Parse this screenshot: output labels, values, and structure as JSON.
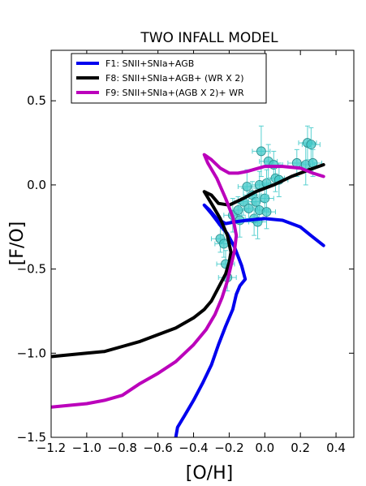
{
  "chart_data": {
    "type": "line",
    "title": "TWO INFALL MODEL",
    "xlabel": "[O/H]",
    "ylabel": "[F/O]",
    "xlim": [
      -1.2,
      0.5
    ],
    "ylim": [
      -1.5,
      0.8
    ],
    "xticks": [
      -1.2,
      -1.0,
      -0.8,
      -0.6,
      -0.4,
      -0.2,
      0.0,
      0.2,
      0.4
    ],
    "xtick_labels": [
      "−1.2",
      "−1.0",
      "−0.8",
      "−0.6",
      "−0.4",
      "−0.2",
      "0.0",
      "0.2",
      "0.4"
    ],
    "yticks": [
      -1.5,
      -1.0,
      -0.5,
      0.0,
      0.5
    ],
    "ytick_labels": [
      "−1.5",
      "−1.0",
      "−0.5",
      "0.0",
      "0.5"
    ],
    "grid": false,
    "legend_position": "top-left",
    "series": [
      {
        "name": "F1: SNII+SNIa+AGB",
        "color": "#0000ee",
        "points": [
          [
            -0.5,
            -1.5
          ],
          [
            -0.49,
            -1.44
          ],
          [
            -0.45,
            -1.37
          ],
          [
            -0.4,
            -1.28
          ],
          [
            -0.35,
            -1.18
          ],
          [
            -0.3,
            -1.07
          ],
          [
            -0.26,
            -0.95
          ],
          [
            -0.22,
            -0.84
          ],
          [
            -0.18,
            -0.74
          ],
          [
            -0.16,
            -0.65
          ],
          [
            -0.14,
            -0.6
          ],
          [
            -0.11,
            -0.56
          ],
          [
            -0.13,
            -0.48
          ],
          [
            -0.17,
            -0.37
          ],
          [
            -0.21,
            -0.29
          ],
          [
            -0.25,
            -0.24
          ],
          [
            -0.3,
            -0.17
          ],
          [
            -0.34,
            -0.12
          ],
          [
            -0.31,
            -0.15
          ],
          [
            -0.27,
            -0.2
          ],
          [
            -0.22,
            -0.23
          ],
          [
            -0.17,
            -0.22
          ],
          [
            -0.1,
            -0.21
          ],
          [
            0.0,
            -0.2
          ],
          [
            0.1,
            -0.21
          ],
          [
            0.2,
            -0.25
          ],
          [
            0.27,
            -0.31
          ],
          [
            0.33,
            -0.36
          ]
        ]
      },
      {
        "name": "F8: SNII+SNIa+AGB+ (WR X 2)",
        "color": "#000000",
        "points": [
          [
            -1.2,
            -1.02
          ],
          [
            -1.1,
            -1.01
          ],
          [
            -1.0,
            -1.0
          ],
          [
            -0.9,
            -0.99
          ],
          [
            -0.8,
            -0.96
          ],
          [
            -0.7,
            -0.93
          ],
          [
            -0.6,
            -0.89
          ],
          [
            -0.5,
            -0.85
          ],
          [
            -0.4,
            -0.79
          ],
          [
            -0.34,
            -0.74
          ],
          [
            -0.3,
            -0.69
          ],
          [
            -0.26,
            -0.61
          ],
          [
            -0.22,
            -0.53
          ],
          [
            -0.2,
            -0.46
          ],
          [
            -0.19,
            -0.4
          ],
          [
            -0.21,
            -0.3
          ],
          [
            -0.25,
            -0.2
          ],
          [
            -0.3,
            -0.11
          ],
          [
            -0.34,
            -0.04
          ],
          [
            -0.3,
            -0.06
          ],
          [
            -0.26,
            -0.11
          ],
          [
            -0.2,
            -0.12
          ],
          [
            -0.12,
            -0.08
          ],
          [
            -0.05,
            -0.04
          ],
          [
            0.05,
            0.0
          ],
          [
            0.15,
            0.05
          ],
          [
            0.25,
            0.09
          ],
          [
            0.33,
            0.12
          ]
        ]
      },
      {
        "name": "F9: SNII+SNIa+(AGB X 2)+ WR",
        "color": "#bb00bb",
        "points": [
          [
            -1.2,
            -1.32
          ],
          [
            -1.1,
            -1.31
          ],
          [
            -1.0,
            -1.3
          ],
          [
            -0.9,
            -1.28
          ],
          [
            -0.8,
            -1.25
          ],
          [
            -0.7,
            -1.18
          ],
          [
            -0.6,
            -1.12
          ],
          [
            -0.5,
            -1.05
          ],
          [
            -0.4,
            -0.95
          ],
          [
            -0.33,
            -0.86
          ],
          [
            -0.28,
            -0.77
          ],
          [
            -0.24,
            -0.67
          ],
          [
            -0.21,
            -0.57
          ],
          [
            -0.19,
            -0.48
          ],
          [
            -0.17,
            -0.39
          ],
          [
            -0.16,
            -0.3
          ],
          [
            -0.18,
            -0.19
          ],
          [
            -0.22,
            -0.08
          ],
          [
            -0.27,
            0.04
          ],
          [
            -0.32,
            0.13
          ],
          [
            -0.34,
            0.18
          ],
          [
            -0.3,
            0.15
          ],
          [
            -0.25,
            0.1
          ],
          [
            -0.2,
            0.07
          ],
          [
            -0.15,
            0.07
          ],
          [
            -0.1,
            0.08
          ],
          [
            0.0,
            0.11
          ],
          [
            0.1,
            0.11
          ],
          [
            0.2,
            0.1
          ],
          [
            0.27,
            0.07
          ],
          [
            0.33,
            0.05
          ]
        ]
      }
    ],
    "observations": {
      "marker": "circle",
      "fill_color": "#40c8c8",
      "error_bar_color": "#58d0d0",
      "points": [
        {
          "x": -0.25,
          "y": -0.32,
          "xerr": 0.05,
          "yerr": 0.08
        },
        {
          "x": -0.23,
          "y": -0.35,
          "xerr": 0.05,
          "yerr": 0.08
        },
        {
          "x": -0.22,
          "y": -0.47,
          "xerr": 0.05,
          "yerr": 0.08
        },
        {
          "x": -0.21,
          "y": -0.55,
          "xerr": 0.05,
          "yerr": 0.08
        },
        {
          "x": -0.18,
          "y": -0.18,
          "xerr": 0.05,
          "yerr": 0.1
        },
        {
          "x": -0.15,
          "y": -0.15,
          "xerr": 0.05,
          "yerr": 0.08
        },
        {
          "x": -0.14,
          "y": -0.21,
          "xerr": 0.05,
          "yerr": 0.1
        },
        {
          "x": -0.12,
          "y": -0.1,
          "xerr": 0.05,
          "yerr": 0.08
        },
        {
          "x": -0.1,
          "y": -0.01,
          "xerr": 0.05,
          "yerr": 0.1
        },
        {
          "x": -0.09,
          "y": -0.14,
          "xerr": 0.05,
          "yerr": 0.08
        },
        {
          "x": -0.07,
          "y": -0.06,
          "xerr": 0.05,
          "yerr": 0.08
        },
        {
          "x": -0.06,
          "y": -0.2,
          "xerr": 0.05,
          "yerr": 0.1
        },
        {
          "x": -0.05,
          "y": -0.1,
          "xerr": 0.05,
          "yerr": 0.08
        },
        {
          "x": -0.04,
          "y": -0.22,
          "xerr": 0.05,
          "yerr": 0.1
        },
        {
          "x": -0.03,
          "y": 0.0,
          "xerr": 0.05,
          "yerr": 0.08
        },
        {
          "x": -0.03,
          "y": -0.15,
          "xerr": 0.05,
          "yerr": 0.08
        },
        {
          "x": -0.02,
          "y": 0.2,
          "xerr": 0.05,
          "yerr": 0.15
        },
        {
          "x": 0.0,
          "y": -0.08,
          "xerr": 0.05,
          "yerr": 0.08
        },
        {
          "x": 0.01,
          "y": 0.01,
          "xerr": 0.05,
          "yerr": 0.08
        },
        {
          "x": 0.01,
          "y": -0.16,
          "xerr": 0.05,
          "yerr": 0.1
        },
        {
          "x": 0.02,
          "y": 0.14,
          "xerr": 0.05,
          "yerr": 0.1
        },
        {
          "x": 0.05,
          "y": 0.12,
          "xerr": 0.05,
          "yerr": 0.08
        },
        {
          "x": 0.06,
          "y": 0.04,
          "xerr": 0.05,
          "yerr": 0.08
        },
        {
          "x": 0.08,
          "y": 0.03,
          "xerr": 0.05,
          "yerr": 0.1
        },
        {
          "x": 0.18,
          "y": 0.13,
          "xerr": 0.05,
          "yerr": 0.08
        },
        {
          "x": 0.23,
          "y": 0.12,
          "xerr": 0.05,
          "yerr": 0.12
        },
        {
          "x": 0.24,
          "y": 0.25,
          "xerr": 0.05,
          "yerr": 0.1
        },
        {
          "x": 0.26,
          "y": 0.24,
          "xerr": 0.05,
          "yerr": 0.1
        },
        {
          "x": 0.27,
          "y": 0.13,
          "xerr": 0.05,
          "yerr": 0.08
        }
      ]
    }
  }
}
